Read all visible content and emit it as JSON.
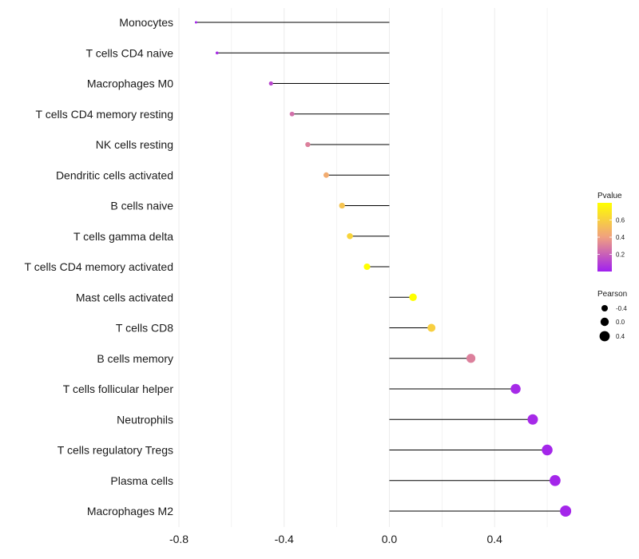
{
  "chart_data": {
    "type": "lollipop",
    "title": "",
    "xlabel": "",
    "ylabel": "",
    "xlim": [
      -0.8,
      0.7
    ],
    "x_ticks": [
      -0.8,
      -0.4,
      0.0,
      0.4
    ],
    "x_tick_labels": [
      "-0.8",
      "-0.4",
      "0.0",
      "0.4"
    ],
    "grid": true,
    "categories": [
      "Monocytes",
      "T cells CD4 naive",
      "Macrophages M0",
      "T cells CD4 memory resting",
      "NK cells resting",
      "Dendritic cells activated",
      "B cells naive",
      "T cells gamma delta",
      "T cells CD4 memory activated",
      "Mast cells activated",
      "T cells CD8",
      "B cells memory",
      "T cells follicular helper",
      "Neutrophils",
      "T cells regulatory  Tregs",
      "Plasma cells",
      "Macrophages M2"
    ],
    "pearson": [
      -0.735,
      -0.655,
      -0.45,
      -0.37,
      -0.31,
      -0.24,
      -0.18,
      -0.15,
      -0.085,
      0.09,
      0.16,
      0.31,
      0.48,
      0.545,
      0.6,
      0.63,
      0.67
    ],
    "pvalue": [
      0.02,
      0.04,
      0.12,
      0.25,
      0.3,
      0.45,
      0.55,
      0.62,
      0.8,
      0.8,
      0.6,
      0.3,
      0.03,
      0.03,
      0.02,
      0.02,
      0.02
    ],
    "legend_color": {
      "title": "Pvalue",
      "ticks": [
        0.2,
        0.4,
        0.6
      ],
      "tick_labels": [
        "0.2",
        "0.4",
        "0.6"
      ],
      "range": [
        0.0,
        0.8
      ],
      "low_color": "#a020f0",
      "mid_color": "#f0a080",
      "high_color": "#ffff00"
    },
    "legend_size": {
      "title": "Pearson",
      "values": [
        -0.4,
        0.0,
        0.4
      ],
      "labels": [
        "-0.4",
        "0.0",
        "0.4"
      ]
    },
    "stem_color": "#000000",
    "grid_color": "#ebebeb"
  }
}
